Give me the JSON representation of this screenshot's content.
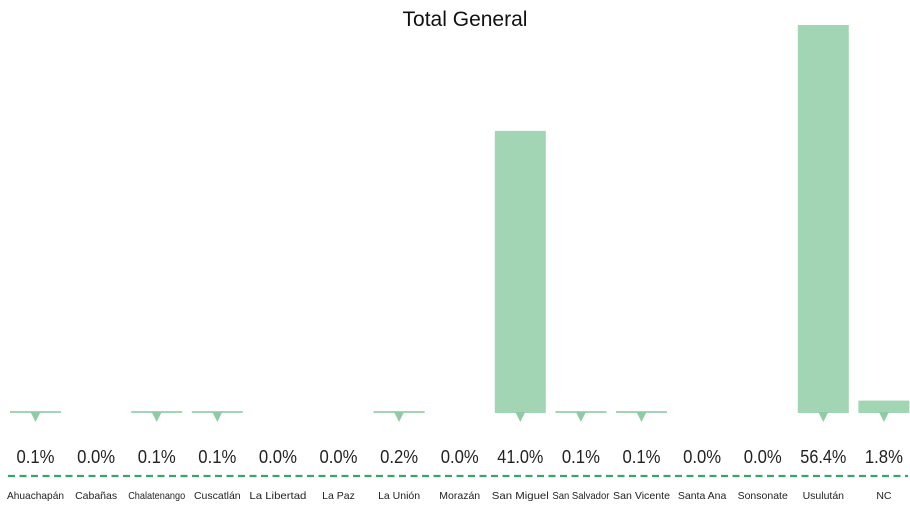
{
  "chart_data": {
    "type": "bar",
    "title": "Total General",
    "xlabel": "",
    "ylabel": "",
    "grid": false,
    "legend": "none",
    "value_format": "percent_one_decimal",
    "categories": [
      "Ahuachapán",
      "Cabañas",
      "Chalatenango",
      "Cuscatlán",
      "La Libertad",
      "La Paz",
      "La Unión",
      "Morazán",
      "San Miguel",
      "San Salvador",
      "San Vicente",
      "Santa Ana",
      "Sonsonate",
      "Usulután",
      "NC"
    ],
    "values": [
      0.1,
      0.0,
      0.1,
      0.1,
      0.0,
      0.0,
      0.2,
      0.0,
      41.0,
      0.1,
      0.1,
      0.0,
      0.0,
      56.4,
      1.8
    ],
    "value_labels": [
      "0.1%",
      "0.0%",
      "0.1%",
      "0.1%",
      "0.0%",
      "0.0%",
      "0.2%",
      "0.0%",
      "41.0%",
      "0.1%",
      "0.1%",
      "0.0%",
      "0.0%",
      "56.4%",
      "1.8%"
    ],
    "ylim": [
      0,
      56.4
    ],
    "colors": {
      "bar": "#a2d5b4",
      "marker": "#8fcca5",
      "dashed_line": "#3aa56a",
      "text": "#222222"
    }
  }
}
